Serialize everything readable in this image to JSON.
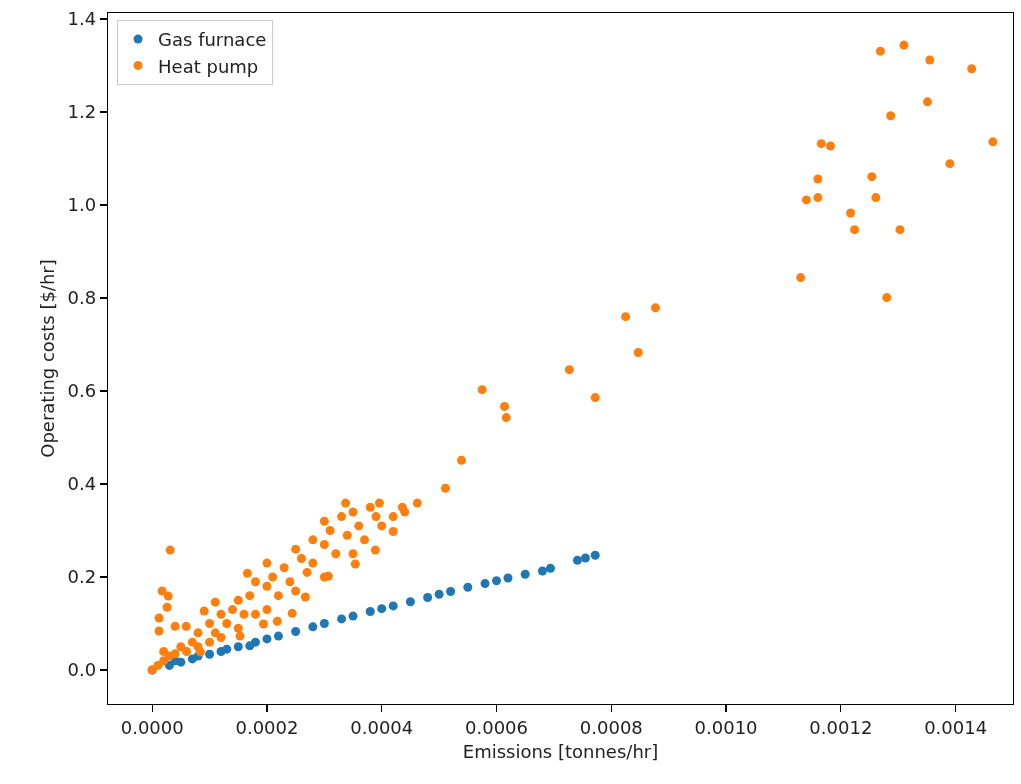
{
  "chart_data": {
    "type": "scatter",
    "xlabel": "Emissions [tonnes/hr]",
    "ylabel": "Operating costs [$/hr]",
    "xlim": [
      -7.7e-05,
      0.0015
    ],
    "ylim": [
      -0.073,
      1.413
    ],
    "xticks": [
      {
        "value": 0,
        "label": "0.0000"
      },
      {
        "value": 0.0002,
        "label": "0.0002"
      },
      {
        "value": 0.0004,
        "label": "0.0004"
      },
      {
        "value": 0.0006,
        "label": "0.0006"
      },
      {
        "value": 0.0008,
        "label": "0.0008"
      },
      {
        "value": 0.001,
        "label": "0.0010"
      },
      {
        "value": 0.0012,
        "label": "0.0012"
      },
      {
        "value": 0.0014,
        "label": "0.0014"
      }
    ],
    "yticks": [
      {
        "value": 0,
        "label": "0.0"
      },
      {
        "value": 0.2,
        "label": "0.2"
      },
      {
        "value": 0.4,
        "label": "0.4"
      },
      {
        "value": 0.6,
        "label": "0.6"
      },
      {
        "value": 0.8,
        "label": "0.8"
      },
      {
        "value": 1,
        "label": "1.0"
      },
      {
        "value": 1.2,
        "label": "1.2"
      },
      {
        "value": 1.4,
        "label": "1.4"
      }
    ],
    "grid": false,
    "legend": "top left",
    "marker": "circle",
    "series": [
      {
        "name": "Gas furnace",
        "color": "#1f77b4",
        "x": [
          0,
          1e-05,
          2e-05,
          3e-05,
          5e-05,
          7e-05,
          0.0001,
          0.00012,
          0.00015,
          0.00018,
          0.0002,
          0.00022,
          0.00025,
          0.00028,
          0.0003,
          0.00033,
          0.00035,
          0.00038,
          0.0004,
          0.00042,
          0.00045,
          0.00048,
          0.0005,
          0.00052,
          0.00055,
          0.00058,
          0.0006,
          0.00062,
          0.00065,
          0.00068,
          0.000694,
          0.000741,
          0.000755,
          0.000772,
          4e-05,
          8e-05,
          0.00013,
          0.00017
        ],
        "values": [
          0,
          null,
          null,
          0.01,
          0.017,
          0.024,
          0.034,
          0.04,
          0.05,
          0.06,
          0.067,
          0.073,
          0.083,
          0.093,
          0.1,
          0.11,
          0.116,
          0.126,
          0.132,
          0.138,
          0.147,
          0.156,
          0.163,
          0.169,
          0.178,
          0.186,
          0.192,
          0.198,
          0.206,
          0.213,
          0.219,
          0.236,
          0.241,
          0.247,
          0.02,
          0.03,
          0.045,
          0.052
        ]
      },
      {
        "name": "Heat pump",
        "color": "#ff7f0e",
        "x": [
          0,
          1e-05,
          2e-05,
          3e-05,
          2e-05,
          4e-05,
          5e-05,
          6e-05,
          7e-05,
          8e-05,
          8e-05,
          0.0001,
          0.0001,
          0.00011,
          0.00012,
          0.00012,
          0.00013,
          0.00014,
          0.00015,
          0.00015,
          0.00016,
          0.00017,
          0.00018,
          0.00018,
          0.0002,
          0.0002,
          0.0002,
          0.00021,
          0.00022,
          0.00023,
          0.00024,
          0.00025,
          0.00025,
          0.00026,
          0.00027,
          0.00028,
          0.00028,
          0.0003,
          0.0003,
          0.0003,
          0.00031,
          0.00032,
          0.00033,
          0.00034,
          0.00035,
          0.00035,
          0.00036,
          0.00037,
          0.00038,
          0.00039,
          0.0004,
          0.00042,
          0.00044,
          0.000436,
          8.4e-05,
          0.000153,
          0.000194,
          0.000218,
          0.000244,
          0.000267,
          0.000307,
          0.000354,
          0.000389,
          0.00042,
          0.000337,
          0.000396,
          1.74e-05,
          2.8e-05,
          2.6e-05,
          1.2e-05,
          1.2e-05,
          4e-05,
          5.93e-05,
          0.00011,
          9.07e-05,
          0.000166,
          3.14e-05,
          0.000462,
          0.000511,
          0.000539,
          0.000614,
          0.000617,
          0.000575,
          0.000727,
          0.000772,
          0.000825,
          0.000847,
          0.000877,
          0.00113,
          0.00114,
          0.00116,
          0.00116,
          0.001166,
          0.001182,
          0.001217,
          0.001224,
          0.001254,
          0.001261,
          0.001269,
          0.00128,
          0.001287,
          0.001303,
          0.00131,
          0.001351,
          0.001355,
          0.00139,
          0.001428,
          0.001465
        ],
        "values": [
          0,
          0.01,
          0.02,
          0.03,
          0.04,
          0.035,
          0.05,
          0.04,
          0.06,
          0.05,
          0.08,
          0.06,
          0.1,
          0.08,
          0.07,
          0.12,
          0.1,
          0.13,
          0.09,
          0.15,
          0.12,
          0.16,
          0.12,
          0.19,
          0.13,
          0.18,
          0.23,
          0.2,
          0.16,
          0.22,
          0.19,
          0.17,
          0.26,
          0.24,
          0.21,
          0.28,
          0.23,
          0.2,
          0.27,
          0.32,
          0.3,
          0.25,
          0.33,
          0.29,
          0.25,
          0.34,
          0.31,
          0.28,
          0.35,
          0.33,
          0.31,
          0.33,
          0.34,
          0.35,
          0.039,
          0.073,
          0.099,
          0.105,
          0.122,
          0.157,
          0.202,
          0.228,
          0.258,
          0.298,
          0.359,
          0.359,
          0.17,
          0.159,
          0.135,
          0.112,
          0.084,
          0.094,
          0.094,
          0.146,
          0.127,
          0.208,
          0.258,
          0.359,
          0.391,
          0.451,
          0.567,
          0.543,
          0.603,
          0.646,
          0.586,
          0.76,
          0.683,
          0.779,
          0.844,
          1.011,
          1.056,
          1.016,
          1.132,
          1.127,
          0.983,
          0.947,
          1.061,
          1.016,
          1.331,
          0.801,
          1.192,
          0.947,
          1.344,
          1.222,
          1.312,
          1.089,
          1.293,
          1.136
        ]
      }
    ]
  }
}
